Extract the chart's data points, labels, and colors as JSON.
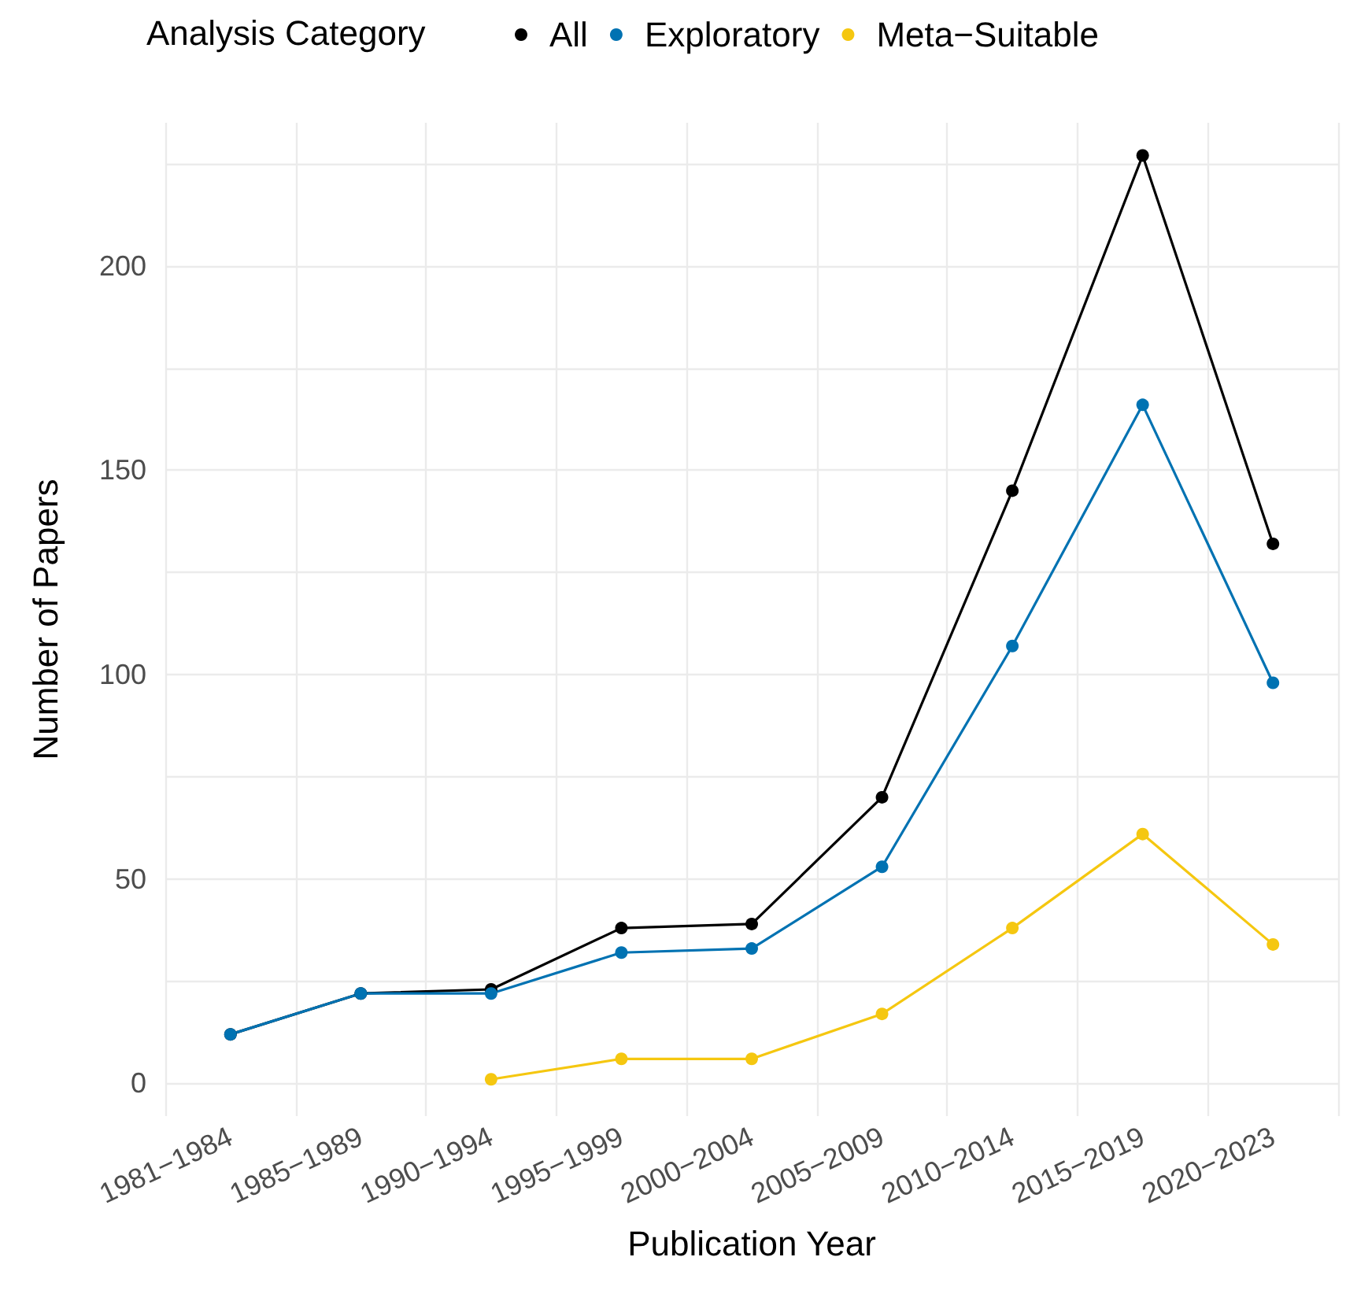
{
  "chart_data": {
    "type": "line",
    "xlabel": "Publication Year",
    "ylabel": "Number of Papers",
    "legend_title": "Analysis Category",
    "categories": [
      "1981−1984",
      "1985−1989",
      "1990−1994",
      "1995−1999",
      "2000−2004",
      "2005−2009",
      "2010−2014",
      "2015−2019",
      "2020−2023"
    ],
    "series": [
      {
        "name": "All",
        "color": "#000000",
        "values": [
          12,
          22,
          23,
          38,
          39,
          70,
          145,
          227,
          132
        ]
      },
      {
        "name": "Exploratory",
        "color": "#0072b2",
        "values": [
          12,
          22,
          22,
          32,
          33,
          53,
          107,
          166,
          98
        ]
      },
      {
        "name": "Meta−Suitable",
        "color": "#f5c710",
        "values": [
          null,
          null,
          1,
          6,
          6,
          17,
          38,
          61,
          34
        ]
      }
    ],
    "ylim": [
      -8,
      235
    ],
    "yticks": [
      0,
      {
        "value": 25,
        "label": null
      },
      50,
      {
        "value": 75,
        "label": null
      },
      100,
      {
        "value": 125,
        "label": null
      },
      150,
      {
        "value": 175,
        "label": null
      },
      200,
      {
        "value": 225,
        "label": null
      }
    ],
    "grid": true,
    "legend": "top",
    "marker": "circle",
    "line_style": "solid"
  }
}
